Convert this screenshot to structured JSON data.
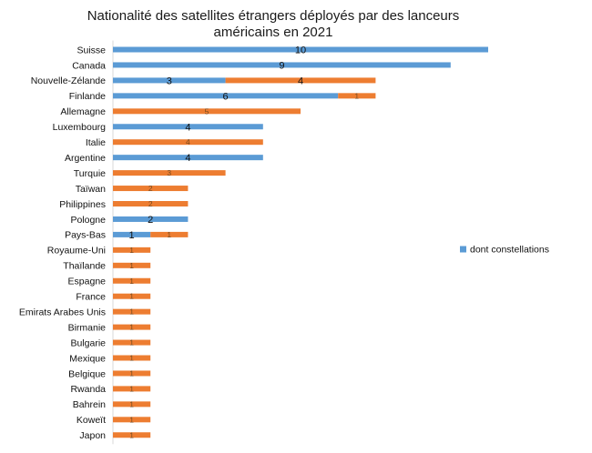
{
  "chart_data": {
    "type": "bar",
    "orientation": "horizontal",
    "stacked": true,
    "title_lines": [
      "Nationalité des satellites étrangers déployés par des lanceurs",
      "américains en 2021"
    ],
    "categories": [
      "Suisse",
      "Canada",
      "Nouvelle-Zélande",
      "Finlande",
      "Allemagne",
      "Luxembourg",
      "Italie",
      "Argentine",
      "Turquie",
      "Taïwan",
      "Philippines",
      "Pologne",
      "Pays-Bas",
      "Royaume-Uni",
      "Thaïlande",
      "Espagne",
      "France",
      "Emirats Arabes Unis",
      "Birmanie",
      "Bulgarie",
      "Mexique",
      "Belgique",
      "Rwanda",
      "Bahrein",
      "Koweït",
      "Japon"
    ],
    "series": [
      {
        "name": "dont constellations",
        "color": "#5b9bd5",
        "values": [
          10,
          9,
          3,
          6,
          0,
          4,
          0,
          4,
          0,
          0,
          0,
          2,
          1,
          0,
          0,
          0,
          0,
          0,
          0,
          0,
          0,
          0,
          0,
          0,
          0,
          0
        ]
      },
      {
        "name": "",
        "color": "#ed7d31",
        "values": [
          0,
          0,
          4,
          1,
          5,
          0,
          4,
          0,
          3,
          2,
          2,
          0,
          1,
          1,
          1,
          1,
          1,
          1,
          1,
          1,
          1,
          1,
          1,
          1,
          1,
          1
        ]
      }
    ],
    "xlim": [
      0,
      12.5
    ],
    "grid": false,
    "legend_position": "right"
  }
}
